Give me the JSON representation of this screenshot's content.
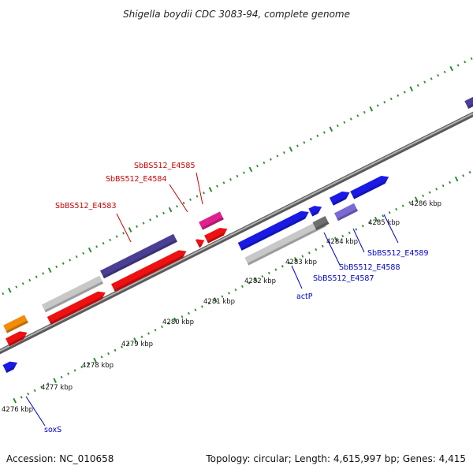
{
  "title": "Shigella boydii CDC 3083-94, complete genome",
  "footer": {
    "accession": "Accession: NC_010658",
    "summary": "Topology: circular; Length: 4,615,997 bp; Genes: 4,415"
  },
  "colors": {
    "backbone": "#8a8a8a",
    "tick": "#2e8b2e",
    "forward_label": "#cc0000",
    "reverse_label": "#0000cc",
    "red": "#ee1111",
    "navy": "#4b3f94",
    "gray": "#c8c8c8",
    "darkgray": "#6e6e6e",
    "blue": "#1a1ae6",
    "lavender": "#7a6ad6",
    "magenta": "#e0208c",
    "orange": "#f28c0a"
  },
  "kbp_labels": [
    "4276 kbp",
    "4277 kbp",
    "4278 kbp",
    "4279 kbp",
    "4280 kbp",
    "4281 kbp",
    "4282 kbp",
    "4283 kbp",
    "4284 kbp",
    "4285 kbp",
    "4286 kbp"
  ],
  "gene_labels_forward": [
    "SbBS512_E4583",
    "SbBS512_E4584",
    "SbBS512_E4585"
  ],
  "gene_labels_reverse": [
    "soxS",
    "actP",
    "SbBS512_E4587",
    "SbBS512_E4588",
    "SbBS512_E4589"
  ]
}
